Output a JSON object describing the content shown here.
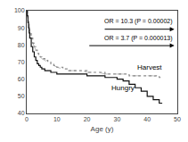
{
  "chart_data": {
    "type": "line",
    "xlabel": "Age (y)",
    "xlim": [
      0,
      50
    ],
    "ylim": [
      40,
      100
    ],
    "xticks": [
      0,
      10,
      20,
      30,
      40,
      50
    ],
    "yticks": [
      40,
      50,
      60,
      70,
      80,
      90,
      100
    ],
    "grid": false,
    "x": [
      0,
      0.2,
      0.4,
      0.6,
      0.8,
      1,
      1.5,
      2,
      2.5,
      3,
      3.5,
      4,
      4.5,
      5,
      6,
      7,
      8,
      9,
      10,
      12,
      14,
      16,
      18,
      20,
      22,
      24,
      26,
      28,
      30,
      32,
      34,
      36,
      38,
      40,
      42,
      44,
      45
    ],
    "series": [
      {
        "name": "Harvest",
        "type": "step",
        "color": "#888888",
        "line_style": "dotted",
        "values": [
          100,
          97,
          94,
          92,
          90,
          88,
          84,
          81,
          79,
          77,
          75,
          74,
          73,
          72,
          71,
          70,
          69,
          68,
          67,
          66,
          65,
          65,
          65,
          64,
          64,
          64,
          63,
          63,
          63,
          63,
          62,
          62,
          62,
          62,
          62,
          61,
          61
        ]
      },
      {
        "name": "Hungry",
        "type": "step",
        "color": "#111111",
        "line_style": "solid",
        "values": [
          100,
          97,
          93,
          90,
          87,
          84,
          79,
          76,
          73,
          71,
          69,
          68,
          67,
          66,
          65,
          65,
          64,
          64,
          63,
          63,
          63,
          63,
          63,
          62,
          62,
          62,
          61,
          61,
          60,
          59,
          57,
          55,
          53,
          50,
          48,
          46,
          46
        ]
      },
      {
        "type": "line",
        "color": "#aaaaaa",
        "line_style": "dashed",
        "values": [
          100,
          97,
          94,
          92,
          90,
          88,
          84,
          81,
          79,
          77,
          75,
          74,
          73,
          72,
          71,
          70,
          69,
          68,
          67,
          66,
          65,
          65,
          65,
          64,
          64,
          64,
          63,
          63,
          63,
          63,
          62,
          62,
          62,
          62,
          62,
          61,
          61
        ]
      }
    ],
    "annotations": [
      "OR = 10.3 (P = 0.00002)",
      "OR = 3.7 (P = 0.000013)"
    ]
  }
}
